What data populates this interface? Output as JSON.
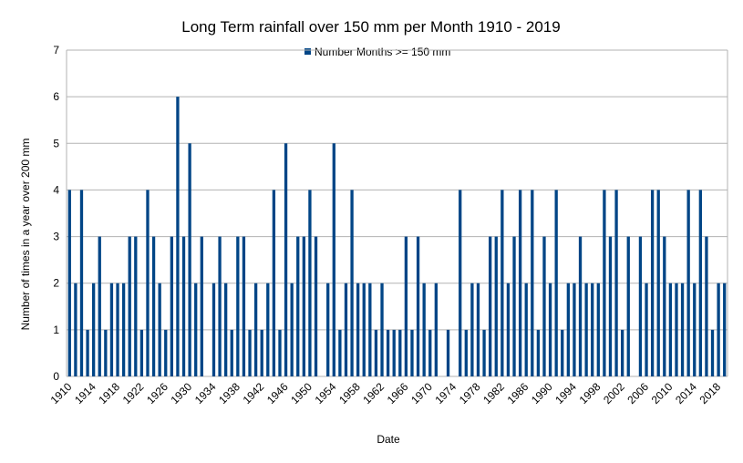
{
  "chart_data": {
    "type": "bar",
    "title": "Long Term rainfall over 150 mm per Month 1910 - 2019",
    "xlabel": "Date",
    "ylabel": "Number of times in a year over 200 mm",
    "ylim": [
      0,
      7
    ],
    "yticks": [
      0,
      1,
      2,
      3,
      4,
      5,
      6,
      7
    ],
    "grid": true,
    "legend_position": "top-center",
    "bar_color": "#004586",
    "x": [
      1910,
      1911,
      1912,
      1913,
      1914,
      1915,
      1916,
      1917,
      1918,
      1919,
      1920,
      1921,
      1922,
      1923,
      1924,
      1925,
      1926,
      1927,
      1928,
      1929,
      1930,
      1931,
      1932,
      1933,
      1934,
      1935,
      1936,
      1937,
      1938,
      1939,
      1940,
      1941,
      1942,
      1943,
      1944,
      1945,
      1946,
      1947,
      1948,
      1949,
      1950,
      1951,
      1952,
      1953,
      1954,
      1955,
      1956,
      1957,
      1958,
      1959,
      1960,
      1961,
      1962,
      1963,
      1964,
      1965,
      1966,
      1967,
      1968,
      1969,
      1970,
      1971,
      1972,
      1973,
      1974,
      1975,
      1976,
      1977,
      1978,
      1979,
      1980,
      1981,
      1982,
      1983,
      1984,
      1985,
      1986,
      1987,
      1988,
      1989,
      1990,
      1991,
      1992,
      1993,
      1994,
      1995,
      1996,
      1997,
      1998,
      1999,
      2000,
      2001,
      2002,
      2003,
      2004,
      2005,
      2006,
      2007,
      2008,
      2009,
      2010,
      2011,
      2012,
      2013,
      2014,
      2015,
      2016,
      2017,
      2018,
      2019
    ],
    "xtick_labels": [
      "1910",
      "1914",
      "1918",
      "1922",
      "1926",
      "1930",
      "1934",
      "1938",
      "1942",
      "1946",
      "1950",
      "1954",
      "1958",
      "1962",
      "1966",
      "1970",
      "1974",
      "1978",
      "1982",
      "1986",
      "1990",
      "1994",
      "1998",
      "2002",
      "2006",
      "2010",
      "2014",
      "2018"
    ],
    "series": [
      {
        "name": "Number Months >= 150 mm",
        "values": [
          4,
          2,
          4,
          1,
          2,
          3,
          1,
          2,
          2,
          2,
          3,
          3,
          1,
          4,
          3,
          2,
          1,
          3,
          6,
          3,
          5,
          2,
          3,
          0,
          2,
          3,
          2,
          1,
          3,
          3,
          1,
          2,
          1,
          2,
          4,
          1,
          5,
          2,
          3,
          3,
          4,
          3,
          0,
          2,
          5,
          1,
          2,
          4,
          2,
          2,
          2,
          1,
          2,
          1,
          1,
          1,
          3,
          1,
          3,
          2,
          1,
          2,
          0,
          1,
          0,
          4,
          1,
          2,
          2,
          1,
          3,
          3,
          4,
          2,
          3,
          4,
          2,
          4,
          1,
          3,
          2,
          4,
          1,
          2,
          2,
          3,
          2,
          2,
          2,
          4,
          3,
          4,
          1,
          3,
          0,
          3,
          2,
          4,
          4,
          3,
          2,
          2,
          2,
          4,
          2,
          4,
          3,
          1,
          2,
          2
        ]
      }
    ]
  }
}
